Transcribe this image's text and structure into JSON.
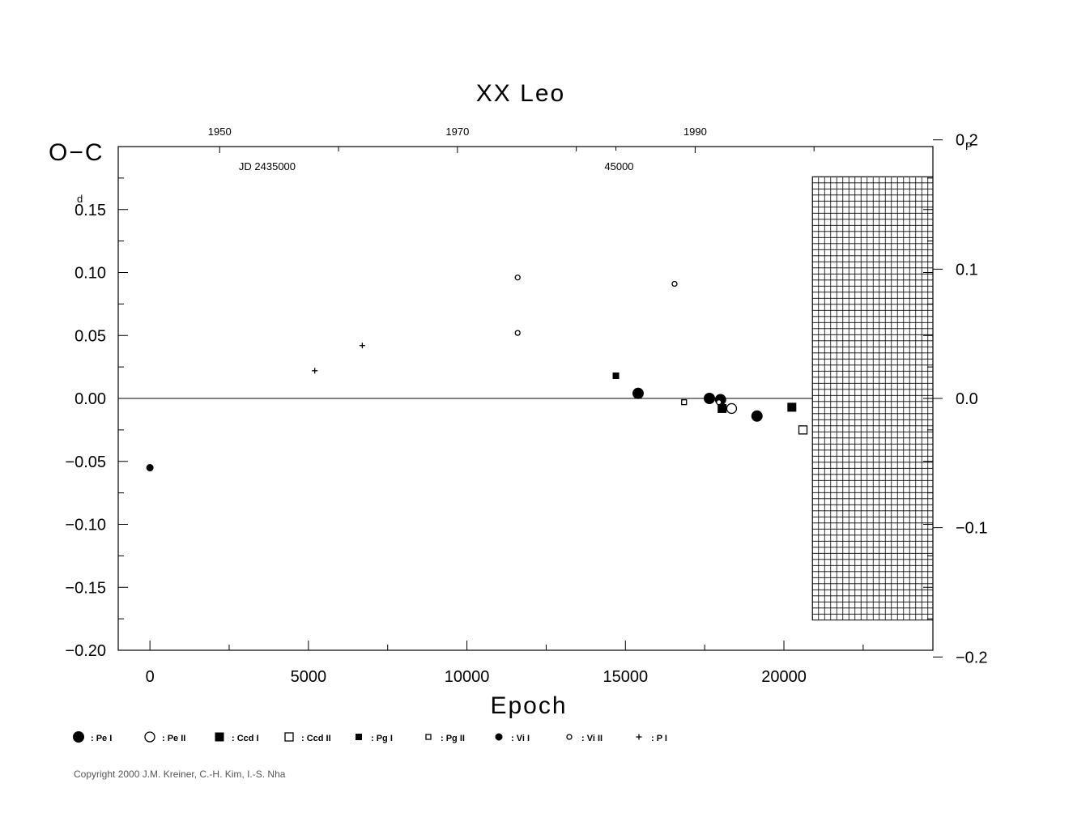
{
  "chart_data": {
    "type": "scatter",
    "title": "XX Leo",
    "xlabel": "Epoch",
    "ylabel": "O−C",
    "ylabel_unit": "d",
    "y2_unit": "P",
    "xlim": [
      -1000,
      24700
    ],
    "ylim": [
      -0.2,
      0.2
    ],
    "x_ticks": [
      {
        "value": 0,
        "label": "0"
      },
      {
        "value": 5000,
        "label": "5000"
      },
      {
        "value": 10000,
        "label": "10000"
      },
      {
        "value": 15000,
        "label": "15000"
      },
      {
        "value": 20000,
        "label": "20000"
      }
    ],
    "y_ticks": [
      {
        "value": 0.15,
        "label": "0.15"
      },
      {
        "value": 0.1,
        "label": "0.10"
      },
      {
        "value": 0.05,
        "label": "0.05"
      },
      {
        "value": 0.0,
        "label": "0.00"
      },
      {
        "value": -0.05,
        "label": "−0.05"
      },
      {
        "value": -0.1,
        "label": "−0.10"
      },
      {
        "value": -0.15,
        "label": "−0.15"
      },
      {
        "value": -0.2,
        "label": "−0.20"
      }
    ],
    "y2_ticks": [
      {
        "value": 0.2,
        "label": "0.2"
      },
      {
        "value": 0.1,
        "label": "0.1"
      },
      {
        "value": 0.0,
        "label": "0.0"
      },
      {
        "value": -0.1,
        "label": "−0.1"
      },
      {
        "value": -0.2,
        "label": "−0.2"
      }
    ],
    "y2_per_y": 0.974,
    "top_year_ticks": [
      {
        "epoch": 2200,
        "label": "1950"
      },
      {
        "epoch": 9700,
        "label": "1970"
      },
      {
        "epoch": 17200,
        "label": "1990"
      }
    ],
    "top_minor_epochs": [
      5950,
      13450,
      20950
    ],
    "jd_labels": [
      {
        "epoch": 3700,
        "label": "JD 2435000"
      },
      {
        "epoch": 14800,
        "label": "45000"
      }
    ],
    "jd_tick_epochs": [
      14700
    ],
    "hatched_region": {
      "x_from": 20900,
      "x_to": 24700,
      "y_from": -0.176,
      "y_to": 0.176
    },
    "zero_line": true,
    "series": [
      {
        "name": "Pe I",
        "marker": "circle-filled-large",
        "points": [
          [
            15400,
            0.004
          ],
          [
            17650,
            0.0
          ],
          [
            18000,
            -0.001
          ],
          [
            19150,
            -0.014
          ]
        ]
      },
      {
        "name": "Pe II",
        "marker": "circle-open-large",
        "points": [
          [
            18350,
            -0.008
          ]
        ]
      },
      {
        "name": "Ccd I",
        "marker": "square-filled-large",
        "points": [
          [
            18050,
            -0.008
          ],
          [
            20250,
            -0.007
          ]
        ]
      },
      {
        "name": "Ccd II",
        "marker": "square-open-large",
        "points": [
          [
            20600,
            -0.025
          ]
        ]
      },
      {
        "name": "Pg I",
        "marker": "square-filled-small",
        "points": [
          [
            14700,
            0.018
          ]
        ]
      },
      {
        "name": "Pg II",
        "marker": "square-open-small",
        "points": [
          [
            16850,
            -0.003
          ]
        ]
      },
      {
        "name": "Vi I",
        "marker": "circle-filled-small",
        "points": [
          [
            0,
            -0.055
          ]
        ]
      },
      {
        "name": "Vi II",
        "marker": "circle-open-small",
        "points": [
          [
            11600,
            0.096
          ],
          [
            11600,
            0.052
          ],
          [
            16550,
            0.091
          ],
          [
            17950,
            -0.003
          ]
        ]
      },
      {
        "name": "P I",
        "marker": "plus",
        "points": [
          [
            5200,
            0.022
          ],
          [
            6700,
            0.042
          ]
        ]
      }
    ]
  },
  "legend": [
    {
      "symbol": "circle-filled-large",
      "label": ": Pe I"
    },
    {
      "symbol": "circle-open-large",
      "label": ": Pe II"
    },
    {
      "symbol": "square-filled-large",
      "label": ": Ccd I"
    },
    {
      "symbol": "square-open-large",
      "label": ": Ccd II"
    },
    {
      "symbol": "square-filled-small",
      "label": ": Pg I"
    },
    {
      "symbol": "square-open-small",
      "label": ": Pg II"
    },
    {
      "symbol": "circle-filled-small",
      "label": ": Vi I"
    },
    {
      "symbol": "circle-open-small",
      "label": ": Vi II"
    },
    {
      "symbol": "plus",
      "label": ": P I"
    }
  ],
  "copyright": "Copyright 2000 J.M. Kreiner, C.-H. Kim, I.-S. Nha"
}
